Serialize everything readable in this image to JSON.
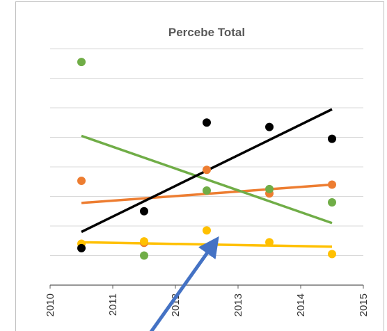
{
  "chart_data": {
    "type": "scatter",
    "title": "Percebe Total",
    "x": [
      2010.5,
      2011.5,
      2012.5,
      2013.5,
      2014.5
    ],
    "series": [
      {
        "color": "#ed7d31",
        "values": [
          3.53,
          1.43,
          3.9,
          3.1,
          3.4
        ],
        "trend": [
          2.78,
          3.4
        ]
      },
      {
        "color": "#70ad47",
        "values": [
          7.55,
          1.0,
          3.2,
          3.25,
          2.8
        ],
        "trend": [
          5.05,
          2.1
        ]
      },
      {
        "color": "#ffc000",
        "values": [
          1.4,
          1.48,
          1.85,
          1.45,
          1.05
        ],
        "trend": [
          1.45,
          1.3
        ]
      },
      {
        "color": "#000000",
        "values": [
          1.25,
          2.5,
          5.5,
          5.35,
          4.95
        ],
        "trend": [
          1.8,
          5.95
        ]
      }
    ],
    "xlim": [
      2010,
      2015
    ],
    "xticks": [
      2010,
      2011,
      2012,
      2013,
      2014,
      2015
    ],
    "ylim": [
      0,
      8
    ],
    "yticks": [
      0,
      1,
      2,
      3,
      4,
      5,
      6,
      7,
      8
    ],
    "grid": true
  }
}
